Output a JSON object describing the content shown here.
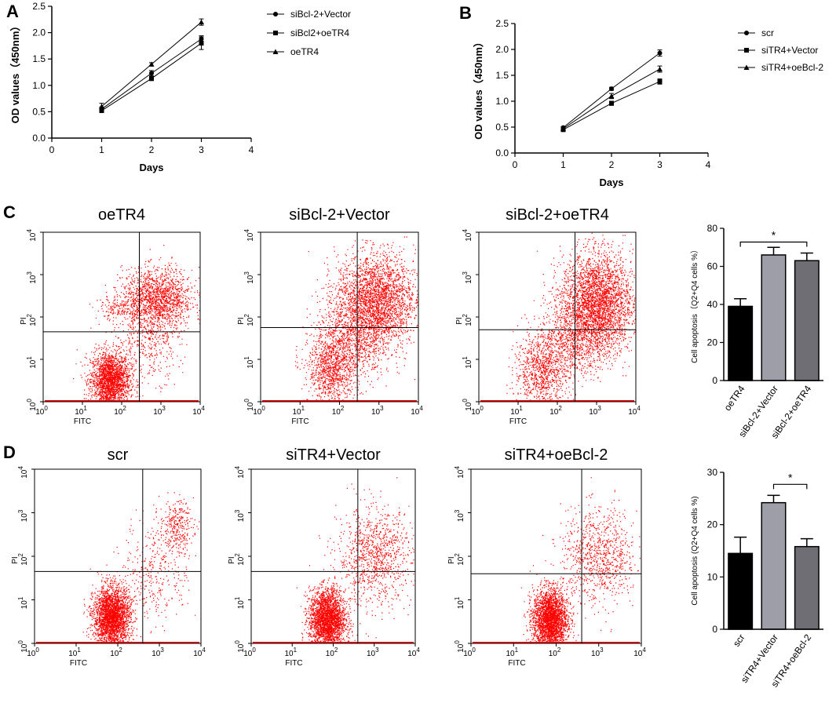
{
  "panel_labels": {
    "A": "A",
    "B": "B",
    "C": "C",
    "D": "D"
  },
  "colors": {
    "ink": "#000000",
    "scatter": "#ff0000",
    "bar_scr": "#000000",
    "bar_light": "#9e9ea8",
    "bar_mid": "#6e6e74"
  },
  "chart_data": [
    {
      "id": "A",
      "type": "line",
      "title": "",
      "xlabel": "Days",
      "ylabel": "OD values（450nm）",
      "xlim": [
        0,
        4
      ],
      "ylim": [
        0,
        2.5
      ],
      "xticks": [
        0,
        1,
        2,
        3,
        4
      ],
      "yticks": [
        0.0,
        0.5,
        1.0,
        1.5,
        2.0,
        2.5
      ],
      "ytick_labels": [
        "0.0",
        "0.5",
        "1.0",
        "1.5",
        "2.0",
        "2.5"
      ],
      "x": [
        1,
        2,
        3
      ],
      "series": [
        {
          "name": "siBcl-2+Vector",
          "marker": "circle",
          "values": [
            0.55,
            1.23,
            1.88
          ],
          "errors": [
            0.04,
            0.05,
            0.06
          ]
        },
        {
          "name": "siBcl2+oeTR4",
          "marker": "square",
          "values": [
            0.52,
            1.13,
            1.8
          ],
          "errors": [
            0.03,
            0.04,
            0.12
          ]
        },
        {
          "name": "oeTR4",
          "marker": "triangle",
          "values": [
            0.6,
            1.4,
            2.2
          ],
          "errors": [
            0.06,
            0.03,
            0.06
          ]
        }
      ]
    },
    {
      "id": "B",
      "type": "line",
      "title": "",
      "xlabel": "Days",
      "ylabel": "OD values（450nm）",
      "xlim": [
        0,
        4
      ],
      "ylim": [
        0,
        2.5
      ],
      "xticks": [
        0,
        1,
        2,
        3,
        4
      ],
      "yticks": [
        0.0,
        0.5,
        1.0,
        1.5,
        2.0,
        2.5
      ],
      "ytick_labels": [
        "0.0",
        "0.5",
        "1.0",
        "1.5",
        "2.0",
        "2.5"
      ],
      "x": [
        1,
        2,
        3
      ],
      "series": [
        {
          "name": "scr",
          "marker": "circle",
          "values": [
            0.49,
            1.24,
            1.93
          ],
          "errors": [
            0.02,
            0.03,
            0.06
          ]
        },
        {
          "name": "siTR4+Vector",
          "marker": "square",
          "values": [
            0.45,
            0.96,
            1.38
          ],
          "errors": [
            0.02,
            0.04,
            0.05
          ]
        },
        {
          "name": "siTR4+oeBcl-2",
          "marker": "triangle",
          "values": [
            0.47,
            1.1,
            1.62
          ],
          "errors": [
            0.02,
            0.05,
            0.06
          ]
        }
      ]
    },
    {
      "id": "C-bar",
      "type": "bar",
      "title": "",
      "xlabel": "",
      "ylabel": "Cell apoptosis（Q2+Q4 cells %）",
      "ylim": [
        0,
        80
      ],
      "yticks": [
        0,
        20,
        40,
        60,
        80
      ],
      "categories": [
        "oeTR4",
        "siBcl-2+Vector",
        "siBcl-2+oeTR4"
      ],
      "values": [
        39,
        66,
        63
      ],
      "errors": [
        4,
        4,
        4
      ],
      "significance": {
        "from": 0,
        "to": 2,
        "label": "*"
      }
    },
    {
      "id": "D-bar",
      "type": "bar",
      "title": "",
      "xlabel": "",
      "ylabel": "Cell apoptosis (Q2+Q4 cells %)",
      "ylim": [
        0,
        30
      ],
      "yticks": [
        0,
        10,
        20,
        30
      ],
      "categories": [
        "scr",
        "siTR4+Vector",
        "siTR4+oeBcl-2"
      ],
      "values": [
        14.5,
        24.2,
        15.8
      ],
      "errors": [
        3.1,
        1.4,
        1.5
      ],
      "significance": {
        "from": 1,
        "to": 2,
        "label": "*"
      }
    },
    {
      "id": "C-flow",
      "type": "scatter",
      "xlabel": "FITC",
      "ylabel": "PI",
      "axis_scale": "log10",
      "range_decades": [
        0,
        4
      ],
      "tick_powers": [
        0,
        1,
        2,
        3,
        4
      ],
      "plots": [
        {
          "title": "oeTR4",
          "gate_x": 2.45,
          "gate_y": 1.65,
          "clusters": [
            {
              "cx": 1.7,
              "cy": 0.5,
              "sx": 0.25,
              "sy": 0.35,
              "n": 2200
            },
            {
              "cx": 2.9,
              "cy": 2.45,
              "sx": 0.45,
              "sy": 0.35,
              "n": 1500
            },
            {
              "cx": 2.7,
              "cy": 1.5,
              "sx": 0.4,
              "sy": 0.5,
              "n": 450
            },
            {
              "cx": 1.9,
              "cy": 2.2,
              "sx": 0.3,
              "sy": 0.15,
              "n": 150
            }
          ]
        },
        {
          "title": "siBcl-2+Vector",
          "gate_x": 2.45,
          "gate_y": 1.75,
          "clusters": [
            {
              "cx": 1.8,
              "cy": 0.75,
              "sx": 0.3,
              "sy": 0.4,
              "n": 900
            },
            {
              "cx": 2.9,
              "cy": 2.4,
              "sx": 0.5,
              "sy": 0.55,
              "n": 2700
            },
            {
              "cx": 2.3,
              "cy": 1.4,
              "sx": 0.5,
              "sy": 0.5,
              "n": 900
            }
          ]
        },
        {
          "title": "siBcl-2+oeTR4",
          "gate_x": 2.45,
          "gate_y": 1.7,
          "clusters": [
            {
              "cx": 1.6,
              "cy": 0.7,
              "sx": 0.35,
              "sy": 0.45,
              "n": 900
            },
            {
              "cx": 3.0,
              "cy": 2.3,
              "sx": 0.45,
              "sy": 0.6,
              "n": 3200
            },
            {
              "cx": 2.3,
              "cy": 1.4,
              "sx": 0.45,
              "sy": 0.45,
              "n": 700
            }
          ]
        }
      ]
    },
    {
      "id": "D-flow",
      "type": "scatter",
      "xlabel": "FITC",
      "ylabel": "PI",
      "axis_scale": "log10",
      "range_decades": [
        0,
        4
      ],
      "tick_powers": [
        0,
        1,
        2,
        3,
        4
      ],
      "plots": [
        {
          "title": "scr",
          "gate_x": 2.6,
          "gate_y": 1.65,
          "clusters": [
            {
              "cx": 1.85,
              "cy": 0.6,
              "sx": 0.22,
              "sy": 0.35,
              "n": 2800
            },
            {
              "cx": 3.4,
              "cy": 2.7,
              "sx": 0.2,
              "sy": 0.3,
              "n": 300
            },
            {
              "cx": 2.9,
              "cy": 1.7,
              "sx": 0.4,
              "sy": 0.6,
              "n": 350
            }
          ]
        },
        {
          "title": "siTR4+Vector",
          "gate_x": 2.6,
          "gate_y": 1.65,
          "clusters": [
            {
              "cx": 1.85,
              "cy": 0.55,
              "sx": 0.22,
              "sy": 0.35,
              "n": 2600
            },
            {
              "cx": 3.0,
              "cy": 2.0,
              "sx": 0.45,
              "sy": 0.55,
              "n": 1000
            }
          ]
        },
        {
          "title": "siTR4+oeBcl-2",
          "gate_x": 2.6,
          "gate_y": 1.6,
          "clusters": [
            {
              "cx": 1.85,
              "cy": 0.55,
              "sx": 0.2,
              "sy": 0.35,
              "n": 2700
            },
            {
              "cx": 3.0,
              "cy": 2.0,
              "sx": 0.45,
              "sy": 0.55,
              "n": 900
            }
          ]
        }
      ]
    }
  ]
}
